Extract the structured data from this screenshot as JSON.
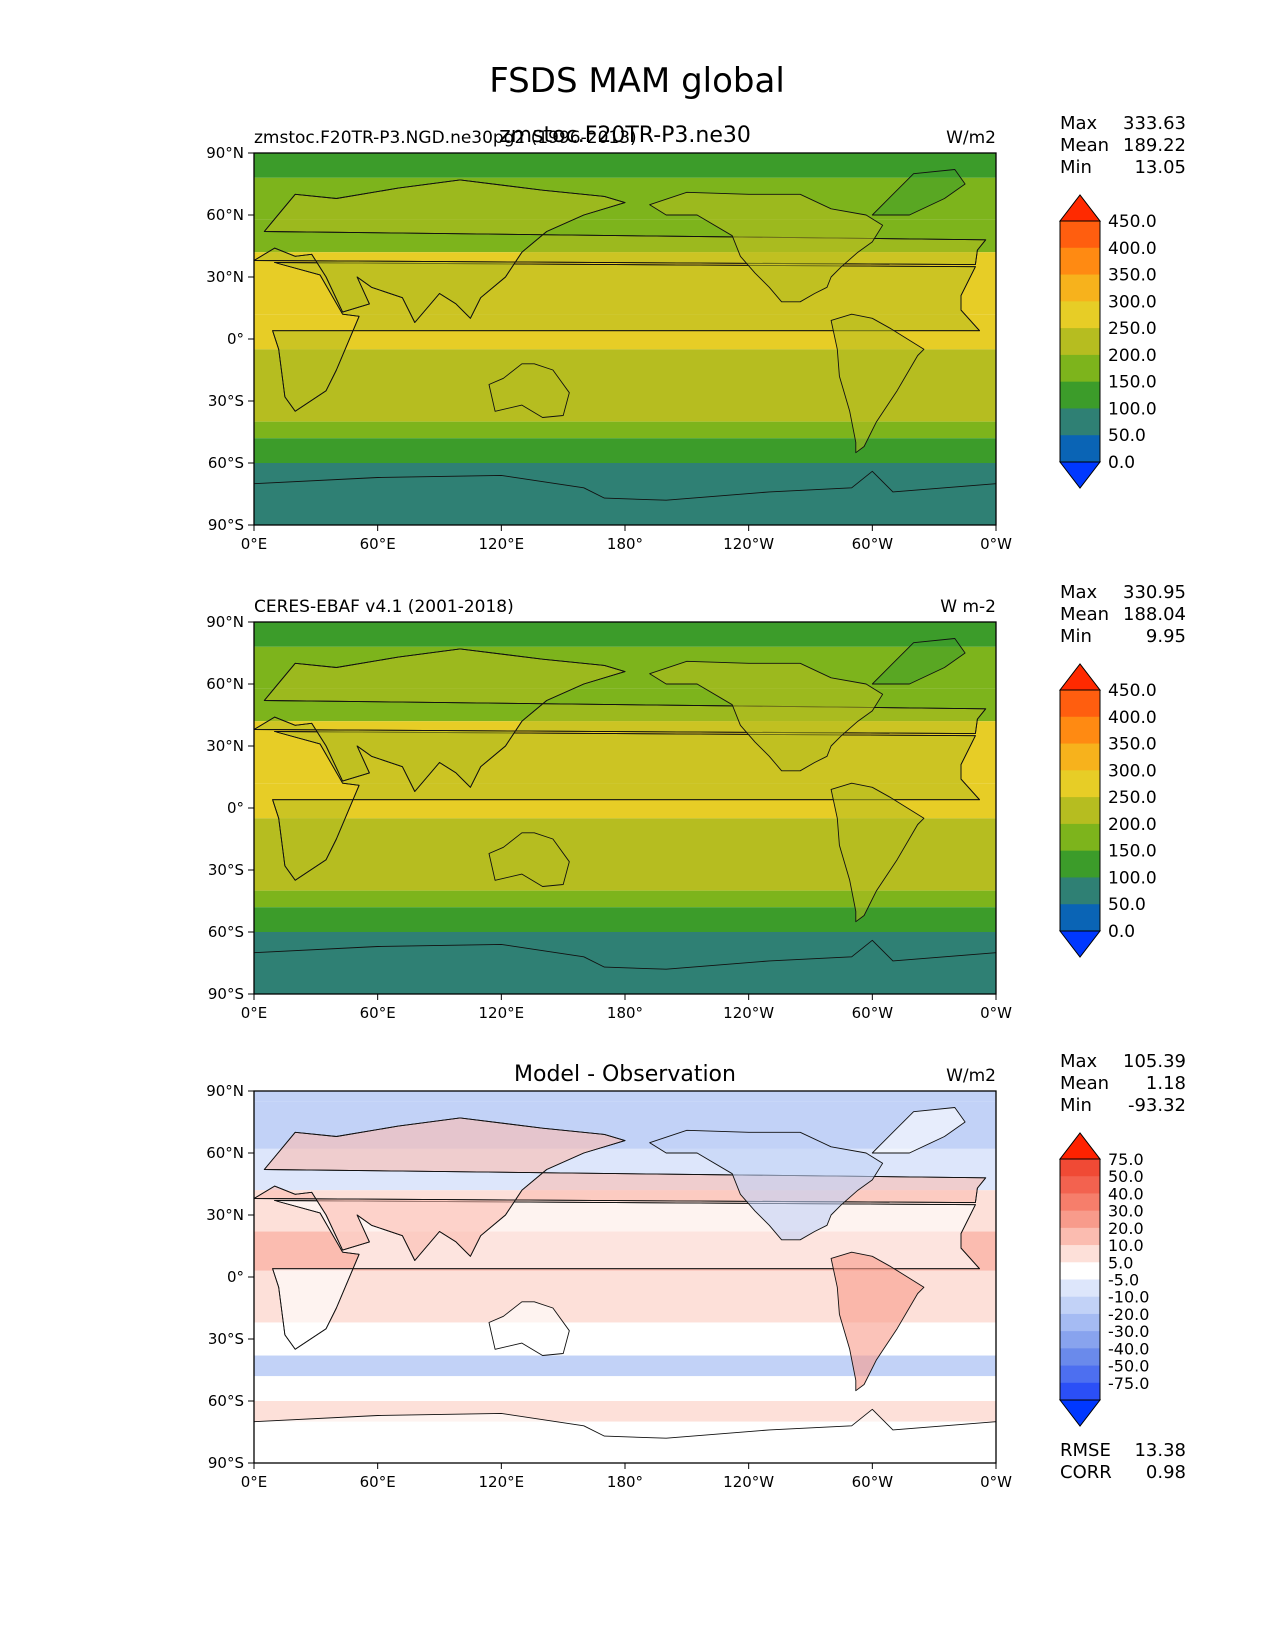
{
  "figure_title": "FSDS MAM global",
  "chart_data": [
    {
      "type": "heatmap",
      "panel": "model",
      "title": "zmstoc.F20TR-P3.ne30",
      "left_label": "zmstoc.F20TR-P3.NGD.ne30pg2 (1996-2013)",
      "units": "W/m2",
      "stats": {
        "max_label": "Max",
        "max": "333.63",
        "mean_label": "Mean",
        "mean": "189.22",
        "min_label": "Min",
        "min": "13.05"
      },
      "x_ticks": [
        "0°E",
        "60°E",
        "120°E",
        "180°",
        "120°W",
        "60°W",
        "0°W"
      ],
      "y_ticks": [
        "90°N",
        "60°N",
        "30°N",
        "0°",
        "30°S",
        "60°S",
        "90°S"
      ],
      "xlim": [
        0,
        360
      ],
      "ylim": [
        -90,
        90
      ],
      "colorbar": {
        "levels": [
          "450.0",
          "400.0",
          "350.0",
          "300.0",
          "250.0",
          "200.0",
          "150.0",
          "100.0",
          "50.0",
          "0.0"
        ],
        "colors": [
          "#ff2a00",
          "#ff5e0f",
          "#ff8a12",
          "#f7b21c",
          "#e7cd26",
          "#b6bd20",
          "#7db41c",
          "#3c9c2a",
          "#2f8074",
          "#0a64b5",
          "#0038ff"
        ]
      },
      "zonal_bands": [
        {
          "lat_top": 90,
          "lat_bottom": 78,
          "value": 140
        },
        {
          "lat_top": 78,
          "lat_bottom": 58,
          "value": 165
        },
        {
          "lat_top": 58,
          "lat_bottom": 42,
          "value": 195
        },
        {
          "lat_top": 42,
          "lat_bottom": 12,
          "value": 265
        },
        {
          "lat_top": 12,
          "lat_bottom": -5,
          "value": 260
        },
        {
          "lat_top": -5,
          "lat_bottom": -30,
          "value": 240
        },
        {
          "lat_top": -30,
          "lat_bottom": -40,
          "value": 205
        },
        {
          "lat_top": -40,
          "lat_bottom": -48,
          "value": 170
        },
        {
          "lat_top": -48,
          "lat_bottom": -60,
          "value": 120
        },
        {
          "lat_top": -60,
          "lat_bottom": -90,
          "value": 60
        }
      ]
    },
    {
      "type": "heatmap",
      "panel": "observation",
      "left_label": "CERES-EBAF v4.1 (2001-2018)",
      "units": "W m-2",
      "stats": {
        "max_label": "Max",
        "max": "330.95",
        "mean_label": "Mean",
        "mean": "188.04",
        "min_label": "Min",
        "min": "9.95"
      },
      "x_ticks": [
        "0°E",
        "60°E",
        "120°E",
        "180°",
        "120°W",
        "60°W",
        "0°W"
      ],
      "y_ticks": [
        "90°N",
        "60°N",
        "30°N",
        "0°",
        "30°S",
        "60°S",
        "90°S"
      ],
      "xlim": [
        0,
        360
      ],
      "ylim": [
        -90,
        90
      ],
      "colorbar": {
        "levels": [
          "450.0",
          "400.0",
          "350.0",
          "300.0",
          "250.0",
          "200.0",
          "150.0",
          "100.0",
          "50.0",
          "0.0"
        ],
        "colors": [
          "#ff2a00",
          "#ff5e0f",
          "#ff8a12",
          "#f7b21c",
          "#e7cd26",
          "#b6bd20",
          "#7db41c",
          "#3c9c2a",
          "#2f8074",
          "#0a64b5",
          "#0038ff"
        ]
      },
      "zonal_bands": [
        {
          "lat_top": 90,
          "lat_bottom": 78,
          "value": 140
        },
        {
          "lat_top": 78,
          "lat_bottom": 58,
          "value": 160
        },
        {
          "lat_top": 58,
          "lat_bottom": 42,
          "value": 190
        },
        {
          "lat_top": 42,
          "lat_bottom": 12,
          "value": 262
        },
        {
          "lat_top": 12,
          "lat_bottom": -5,
          "value": 255
        },
        {
          "lat_top": -5,
          "lat_bottom": -30,
          "value": 238
        },
        {
          "lat_top": -30,
          "lat_bottom": -40,
          "value": 200
        },
        {
          "lat_top": -40,
          "lat_bottom": -48,
          "value": 165
        },
        {
          "lat_top": -48,
          "lat_bottom": -60,
          "value": 120
        },
        {
          "lat_top": -60,
          "lat_bottom": -90,
          "value": 60
        }
      ]
    },
    {
      "type": "heatmap",
      "panel": "difference",
      "title": "Model - Observation",
      "units": "W/m2",
      "stats": {
        "max_label": "Max",
        "max": "105.39",
        "mean_label": "Mean",
        "mean": "1.18",
        "min_label": "Min",
        "min": "-93.32"
      },
      "metrics": {
        "rmse_label": "RMSE",
        "rmse": "13.38",
        "corr_label": "CORR",
        "corr": "0.98"
      },
      "x_ticks": [
        "0°E",
        "60°E",
        "120°E",
        "180°",
        "120°W",
        "60°W",
        "0°W"
      ],
      "y_ticks": [
        "90°N",
        "60°N",
        "30°N",
        "0°",
        "30°S",
        "60°S",
        "90°S"
      ],
      "xlim": [
        0,
        360
      ],
      "ylim": [
        -90,
        90
      ],
      "colorbar": {
        "levels": [
          "75.0",
          "50.0",
          "40.0",
          "30.0",
          "20.0",
          "10.0",
          "5.0",
          "-5.0",
          "-10.0",
          "-20.0",
          "-30.0",
          "-40.0",
          "-50.0",
          "-75.0"
        ],
        "colors": [
          "#ff2200",
          "#f04a35",
          "#f3624f",
          "#f67e6b",
          "#f89b8b",
          "#fbbcb0",
          "#fde0d9",
          "#ffffff",
          "#dde6fb",
          "#c2d2f7",
          "#a5bbf3",
          "#88a3ee",
          "#6a8aeb",
          "#4d6ff0",
          "#2b4ff7",
          "#0038ff"
        ]
      },
      "zonal_bands": [
        {
          "lat_top": 90,
          "lat_bottom": 85,
          "value": -12
        },
        {
          "lat_top": 85,
          "lat_bottom": 62,
          "value": -12
        },
        {
          "lat_top": 62,
          "lat_bottom": 42,
          "value": -8
        },
        {
          "lat_top": 42,
          "lat_bottom": 22,
          "value": 6
        },
        {
          "lat_top": 22,
          "lat_bottom": 3,
          "value": 12
        },
        {
          "lat_top": 3,
          "lat_bottom": -22,
          "value": 8
        },
        {
          "lat_top": -22,
          "lat_bottom": -38,
          "value": 3
        },
        {
          "lat_top": -38,
          "lat_bottom": -48,
          "value": -11
        },
        {
          "lat_top": -48,
          "lat_bottom": -60,
          "value": 2
        },
        {
          "lat_top": -60,
          "lat_bottom": -70,
          "value": 9
        },
        {
          "lat_top": -70,
          "lat_bottom": -90,
          "value": 1
        }
      ]
    }
  ]
}
